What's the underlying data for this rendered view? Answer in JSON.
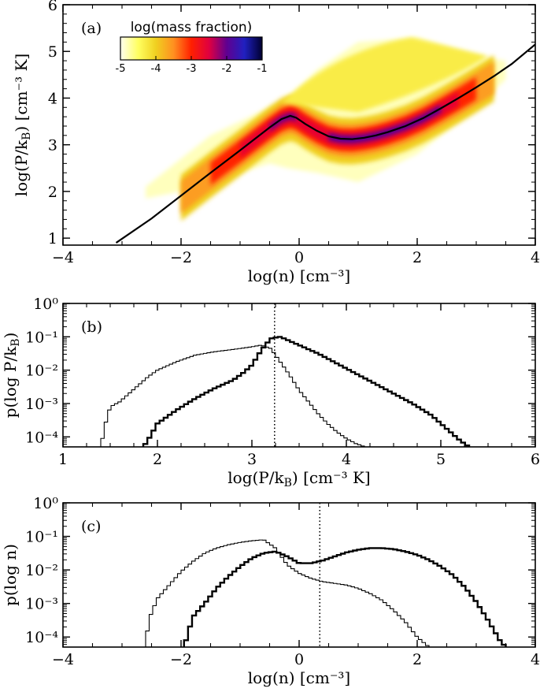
{
  "chart_data": [
    {
      "id": "a",
      "type": "heatmap",
      "panel_label": "(a)",
      "xlabel": "log(n) [cm⁻³]",
      "ylabel": "log(P/k_B) [cm⁻³ K]",
      "xlim": [
        -4,
        4
      ],
      "ylim": [
        0.85,
        6
      ],
      "xticks": [
        -4,
        -2,
        0,
        2,
        4
      ],
      "xtick_labels": [
        "−4",
        "−2",
        "0",
        "2",
        "4"
      ],
      "yticks": [
        1,
        2,
        3,
        4,
        5,
        6
      ],
      "ytick_labels": [
        "1",
        "2",
        "3",
        "4",
        "5",
        "6"
      ],
      "colorbar": {
        "title": "log(mass fraction)",
        "range": [
          -5,
          -1
        ],
        "ticks": [
          -5,
          -4,
          -3,
          -2,
          -1
        ],
        "tick_labels": [
          "-5",
          "-4",
          "-3",
          "-2",
          "-1"
        ],
        "colors": [
          "#fffff0",
          "#ffff60",
          "#f0d020",
          "#ff9020",
          "#ff2000",
          "#e00040",
          "#600090",
          "#2020c0",
          "#000030"
        ]
      },
      "equilibrium_curve": {
        "x": [
          -3.1,
          -2.5,
          -2.0,
          -1.5,
          -1.0,
          -0.5,
          -0.3,
          -0.15,
          -0.05,
          0.1,
          0.3,
          0.5,
          0.7,
          0.9,
          1.1,
          1.3,
          1.5,
          1.8,
          2.1,
          2.4,
          2.7,
          3.0,
          3.3,
          3.6,
          4.0
        ],
        "y": [
          0.9,
          1.42,
          1.91,
          2.4,
          2.88,
          3.37,
          3.55,
          3.62,
          3.58,
          3.45,
          3.3,
          3.18,
          3.13,
          3.12,
          3.15,
          3.2,
          3.27,
          3.4,
          3.57,
          3.78,
          4.0,
          4.23,
          4.47,
          4.73,
          5.15
        ]
      },
      "phase_distribution": [
        {
          "x": -2.6,
          "y_lo": 1.85,
          "y_hi": 2.1,
          "level": -4.8
        },
        {
          "x": -2.0,
          "y_lo": 2.0,
          "y_hi": 2.7,
          "level": -4.0
        },
        {
          "x": -1.5,
          "y_lo": 2.2,
          "y_hi": 3.2,
          "level": -3.5
        },
        {
          "x": -1.0,
          "y_lo": 2.4,
          "y_hi": 3.5,
          "level": -3.0
        },
        {
          "x": -0.5,
          "y_lo": 2.6,
          "y_hi": 3.8,
          "level": -2.6
        },
        {
          "x": -0.2,
          "y_lo": 2.5,
          "y_hi": 3.95,
          "level": -2.5
        },
        {
          "x": 0.3,
          "y_lo": 2.4,
          "y_hi": 4.6,
          "level": -3.0
        },
        {
          "x": 1.0,
          "y_lo": 2.2,
          "y_hi": 5.2,
          "level": -2.4
        },
        {
          "x": 2.0,
          "y_lo": 2.8,
          "y_hi": 5.3,
          "level": -2.6
        },
        {
          "x": 3.0,
          "y_lo": 3.8,
          "y_hi": 4.9,
          "level": -3.5
        },
        {
          "x": 3.5,
          "y_lo": 4.4,
          "y_hi": 4.8,
          "level": -4.5
        }
      ]
    },
    {
      "id": "b",
      "type": "line",
      "panel_label": "(b)",
      "xlabel": "log(P/k_B) [cm⁻³ K]",
      "ylabel": "p(log P/k_B)",
      "xlim": [
        1,
        6
      ],
      "ylim_log10": [
        -4.3,
        0
      ],
      "xticks": [
        1,
        2,
        3,
        4,
        5,
        6
      ],
      "xtick_labels": [
        "1",
        "2",
        "3",
        "4",
        "5",
        "6"
      ],
      "yticks_log10": [
        0,
        -1,
        -2,
        -3,
        -4
      ],
      "ytick_labels": [
        "10⁰",
        "10⁻¹",
        "10⁻²",
        "10⁻³",
        "10⁻⁴"
      ],
      "vline": 3.24,
      "series": [
        {
          "name": "thin",
          "step": true,
          "x": [
            1.4,
            1.45,
            1.5,
            1.6,
            1.7,
            1.8,
            1.9,
            2.0,
            2.2,
            2.4,
            2.6,
            2.8,
            3.0,
            3.1,
            3.2,
            3.3,
            3.4,
            3.5,
            3.6,
            3.7,
            3.8,
            3.9,
            4.0,
            4.1,
            4.2,
            4.3
          ],
          "log10": [
            -4.3,
            -3.6,
            -3.1,
            -2.95,
            -2.7,
            -2.45,
            -2.2,
            -2.0,
            -1.75,
            -1.55,
            -1.45,
            -1.38,
            -1.3,
            -1.25,
            -1.35,
            -1.75,
            -2.15,
            -2.6,
            -2.95,
            -3.3,
            -3.6,
            -3.85,
            -4.05,
            -4.2,
            -4.3,
            -4.3
          ]
        },
        {
          "name": "thick",
          "step": true,
          "x": [
            1.85,
            1.9,
            2.0,
            2.2,
            2.4,
            2.6,
            2.8,
            2.9,
            3.0,
            3.1,
            3.2,
            3.3,
            3.5,
            3.7,
            3.9,
            4.1,
            4.3,
            4.5,
            4.7,
            4.9,
            5.0,
            5.1,
            5.2,
            5.3
          ],
          "log10": [
            -4.3,
            -4.1,
            -3.6,
            -3.2,
            -2.85,
            -2.55,
            -2.3,
            -2.1,
            -1.85,
            -1.4,
            -1.05,
            -1.0,
            -1.25,
            -1.5,
            -1.8,
            -2.1,
            -2.4,
            -2.7,
            -3.0,
            -3.35,
            -3.6,
            -3.85,
            -4.1,
            -4.3
          ]
        }
      ]
    },
    {
      "id": "c",
      "type": "line",
      "panel_label": "(c)",
      "xlabel": "log(n) [cm⁻³]",
      "ylabel": "p(log n)",
      "xlim": [
        -4,
        4
      ],
      "ylim_log10": [
        -4.3,
        0
      ],
      "xticks": [
        -4,
        -2,
        0,
        2,
        4
      ],
      "xtick_labels": [
        "−4",
        "−2",
        "0",
        "2",
        "4"
      ],
      "yticks_log10": [
        0,
        -1,
        -2,
        -3,
        -4
      ],
      "ytick_labels": [
        "10⁰",
        "10⁻¹",
        "10⁻²",
        "10⁻³",
        "10⁻⁴"
      ],
      "vline": 0.35,
      "series": [
        {
          "name": "thin",
          "step": true,
          "x": [
            -2.6,
            -2.55,
            -2.4,
            -2.2,
            -2.0,
            -1.8,
            -1.6,
            -1.4,
            -1.2,
            -1.0,
            -0.8,
            -0.6,
            -0.4,
            -0.2,
            0.0,
            0.2,
            0.4,
            0.6,
            0.8,
            1.0,
            1.2,
            1.4,
            1.6,
            1.8,
            2.0,
            2.2
          ],
          "log10": [
            -4.3,
            -3.5,
            -2.85,
            -2.45,
            -2.05,
            -1.75,
            -1.5,
            -1.35,
            -1.25,
            -1.18,
            -1.13,
            -1.1,
            -1.35,
            -1.85,
            -2.1,
            -2.25,
            -2.35,
            -2.4,
            -2.45,
            -2.55,
            -2.7,
            -2.9,
            -3.2,
            -3.55,
            -4.0,
            -4.3
          ]
        },
        {
          "name": "thick",
          "step": true,
          "x": [
            -1.95,
            -1.9,
            -1.8,
            -1.6,
            -1.4,
            -1.2,
            -1.0,
            -0.8,
            -0.6,
            -0.4,
            -0.2,
            0.0,
            0.2,
            0.4,
            0.6,
            0.8,
            1.0,
            1.2,
            1.4,
            1.6,
            1.8,
            2.0,
            2.2,
            2.4,
            2.6,
            2.8,
            3.0,
            3.2,
            3.4,
            3.5
          ],
          "log10": [
            -4.3,
            -4.0,
            -3.4,
            -3.0,
            -2.55,
            -2.2,
            -1.9,
            -1.65,
            -1.5,
            -1.45,
            -1.6,
            -1.8,
            -1.8,
            -1.72,
            -1.6,
            -1.48,
            -1.4,
            -1.35,
            -1.35,
            -1.38,
            -1.45,
            -1.55,
            -1.7,
            -1.9,
            -2.15,
            -2.5,
            -2.95,
            -3.5,
            -4.1,
            -4.3
          ]
        }
      ]
    }
  ]
}
